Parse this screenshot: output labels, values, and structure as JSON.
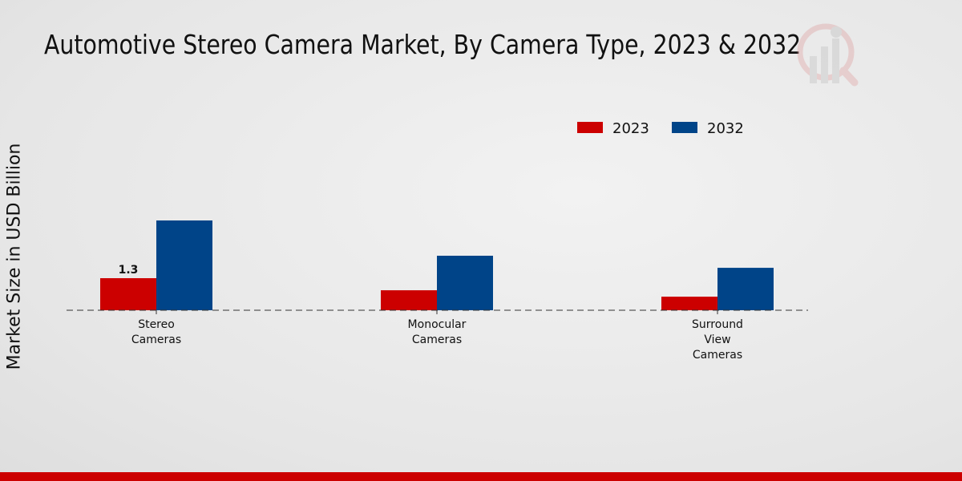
{
  "chart_data": {
    "type": "bar",
    "title": "Automotive Stereo Camera Market, By Camera Type, 2023 & 2032",
    "xlabel": "",
    "ylabel": "Market Size in USD Billion",
    "categories": [
      [
        "Stereo",
        "Cameras"
      ],
      [
        "Monocular",
        "Cameras"
      ],
      [
        "Surround",
        "View",
        "Cameras"
      ]
    ],
    "series": [
      {
        "name": "2023",
        "color": "#cc0000",
        "values": [
          1.3,
          0.81,
          0.55
        ]
      },
      {
        "name": "2032",
        "color": "#004488",
        "values": [
          3.64,
          2.21,
          1.72
        ]
      }
    ],
    "data_labels": [
      {
        "series": 0,
        "index": 0,
        "text": "1.3"
      }
    ],
    "ylim": [
      0,
      9.5
    ],
    "legend": "top-right",
    "grid": false
  }
}
